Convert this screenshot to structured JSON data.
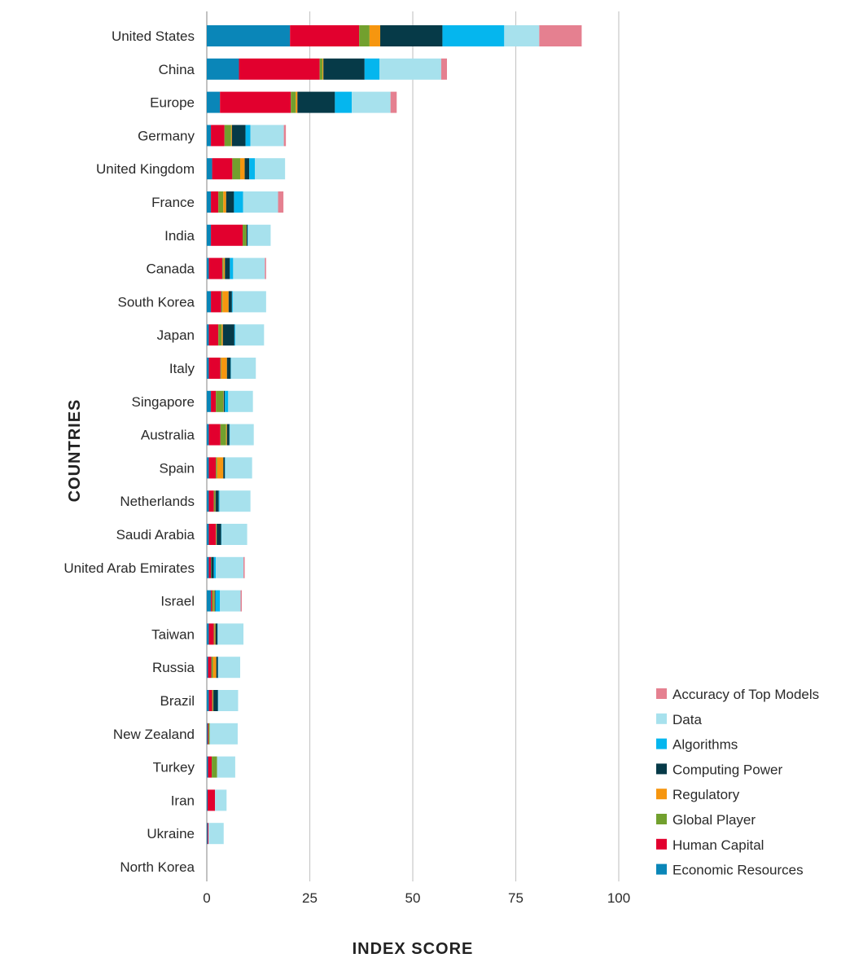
{
  "chart_data": {
    "type": "bar",
    "orientation": "horizontal",
    "stacked": true,
    "xlabel": "INDEX SCORE",
    "ylabel": "COUNTRIES",
    "xlim": [
      0,
      100
    ],
    "xticks": [
      0,
      25,
      50,
      75,
      100
    ],
    "grid": "vertical",
    "legend_position": "bottom-right",
    "categories": [
      "United States",
      "China",
      "Europe",
      "Germany",
      "United Kingdom",
      "France",
      "India",
      "Canada",
      "South Korea",
      "Japan",
      "Italy",
      "Singapore",
      "Australia",
      "Spain",
      "Netherlands",
      "Saudi Arabia",
      "United Arab Emirates",
      "Israel",
      "Taiwan",
      "Russia",
      "Brazil",
      "New Zealand",
      "Turkey",
      "Iran",
      "Ukraine",
      "North Korea"
    ],
    "series": [
      {
        "name": "Economic Resources",
        "color": "#0a86b8",
        "values": [
          20.2,
          7.8,
          3.2,
          1.0,
          1.3,
          1.0,
          1.0,
          0.5,
          1.0,
          0.5,
          0.5,
          1.0,
          0.5,
          0.5,
          0.5,
          0.5,
          0.5,
          1.0,
          0.5,
          0.3,
          0.5,
          0.2,
          0.3,
          0.2,
          0.2,
          0
        ]
      },
      {
        "name": "Human Capital",
        "color": "#e2002e",
        "values": [
          16.8,
          19.6,
          17.2,
          3.3,
          4.9,
          1.8,
          7.7,
          3.3,
          2.5,
          2.3,
          2.8,
          1.2,
          2.8,
          1.7,
          1.2,
          1.7,
          0.5,
          0.3,
          1.2,
          0.8,
          0.8,
          0.2,
          0.9,
          1.8,
          0.2,
          0
        ]
      },
      {
        "name": "Global Player",
        "color": "#72a02e",
        "values": [
          2.5,
          0.7,
          1.2,
          1.6,
          1.9,
          1.2,
          0.8,
          0.3,
          0.3,
          0.8,
          0.2,
          1.8,
          1.4,
          0.3,
          0.3,
          0.1,
          0.1,
          0.4,
          0.2,
          0.4,
          0.2,
          0.3,
          1.3,
          0,
          0,
          0
        ]
      },
      {
        "name": "Regulatory",
        "color": "#f6960f",
        "values": [
          2.6,
          0.2,
          0.4,
          0.2,
          1.1,
          0.7,
          0.1,
          0.3,
          1.5,
          0.3,
          1.4,
          0.1,
          0.2,
          1.5,
          0.1,
          0.1,
          0,
          0.2,
          0.2,
          0.8,
          0.1,
          0,
          0,
          0,
          0,
          0
        ]
      },
      {
        "name": "Computing Power",
        "color": "#063a48",
        "values": [
          15.1,
          10.0,
          9.1,
          3.3,
          1.1,
          1.9,
          0.3,
          1.2,
          0.8,
          2.8,
          0.9,
          0.3,
          0.6,
          0.4,
          0.8,
          1.1,
          0.6,
          0.2,
          0.5,
          0.4,
          1.1,
          0,
          0,
          0,
          0,
          0
        ]
      },
      {
        "name": "Algorithms",
        "color": "#05b6ee",
        "values": [
          15.0,
          3.6,
          4.1,
          1.2,
          1.4,
          2.2,
          0.1,
          0.8,
          0.2,
          0.2,
          0.1,
          0.8,
          0.1,
          0.1,
          0.2,
          0.1,
          0.5,
          1.1,
          0.1,
          0.1,
          0.1,
          0,
          0,
          0,
          0,
          0
        ]
      },
      {
        "name": "Data",
        "color": "#a7e1ed",
        "values": [
          8.5,
          15.0,
          9.4,
          8.1,
          7.3,
          8.5,
          5.5,
          7.7,
          8.1,
          7.0,
          6.0,
          6.0,
          5.8,
          6.5,
          7.5,
          6.2,
          6.7,
          5.0,
          6.2,
          5.3,
          4.8,
          6.8,
          4.4,
          2.8,
          3.7,
          0
        ]
      },
      {
        "name": "Accuracy of Top Models",
        "color": "#e58090",
        "values": [
          10.3,
          1.4,
          1.5,
          0.5,
          0,
          1.3,
          0,
          0.3,
          0,
          0,
          0,
          0,
          0,
          0,
          0,
          0,
          0.3,
          0.3,
          0,
          0,
          0,
          0,
          0,
          0,
          0,
          0
        ]
      }
    ],
    "legend_order": [
      "Accuracy of Top Models",
      "Data",
      "Algorithms",
      "Computing Power",
      "Regulatory",
      "Global Player",
      "Human Capital",
      "Economic Resources"
    ]
  }
}
